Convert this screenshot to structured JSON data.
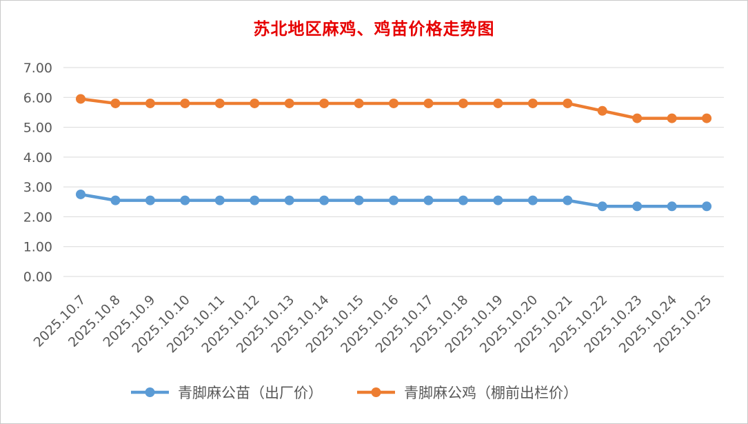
{
  "chart_data": {
    "type": "line",
    "title": "苏北地区麻鸡、鸡苗价格走势图",
    "categories": [
      "2025.10.7",
      "2025.10.8",
      "2025.10.9",
      "2025.10.10",
      "2025.10.11",
      "2025.10.12",
      "2025.10.13",
      "2025.10.14",
      "2025.10.15",
      "2025.10.16",
      "2025.10.17",
      "2025.10.18",
      "2025.10.19",
      "2025.10.20",
      "2025.10.21",
      "2025.10.22",
      "2025.10.23",
      "2025.10.24",
      "2025.10.25"
    ],
    "ylim": [
      0,
      7
    ],
    "yticks": [
      "0.00",
      "1.00",
      "2.00",
      "3.00",
      "4.00",
      "5.00",
      "6.00",
      "7.00"
    ],
    "grid": true,
    "legend_position": "bottom",
    "series": [
      {
        "name": "青脚麻公苗（出厂价）",
        "color": "#5b9bd5",
        "values": [
          2.75,
          2.55,
          2.55,
          2.55,
          2.55,
          2.55,
          2.55,
          2.55,
          2.55,
          2.55,
          2.55,
          2.55,
          2.55,
          2.55,
          2.55,
          2.35,
          2.35,
          2.35,
          2.35
        ]
      },
      {
        "name": "青脚麻公鸡（棚前出栏价）",
        "color": "#ed7d31",
        "values": [
          5.95,
          5.8,
          5.8,
          5.8,
          5.8,
          5.8,
          5.8,
          5.8,
          5.8,
          5.8,
          5.8,
          5.8,
          5.8,
          5.8,
          5.8,
          5.55,
          5.3,
          5.3,
          5.3
        ]
      }
    ]
  }
}
